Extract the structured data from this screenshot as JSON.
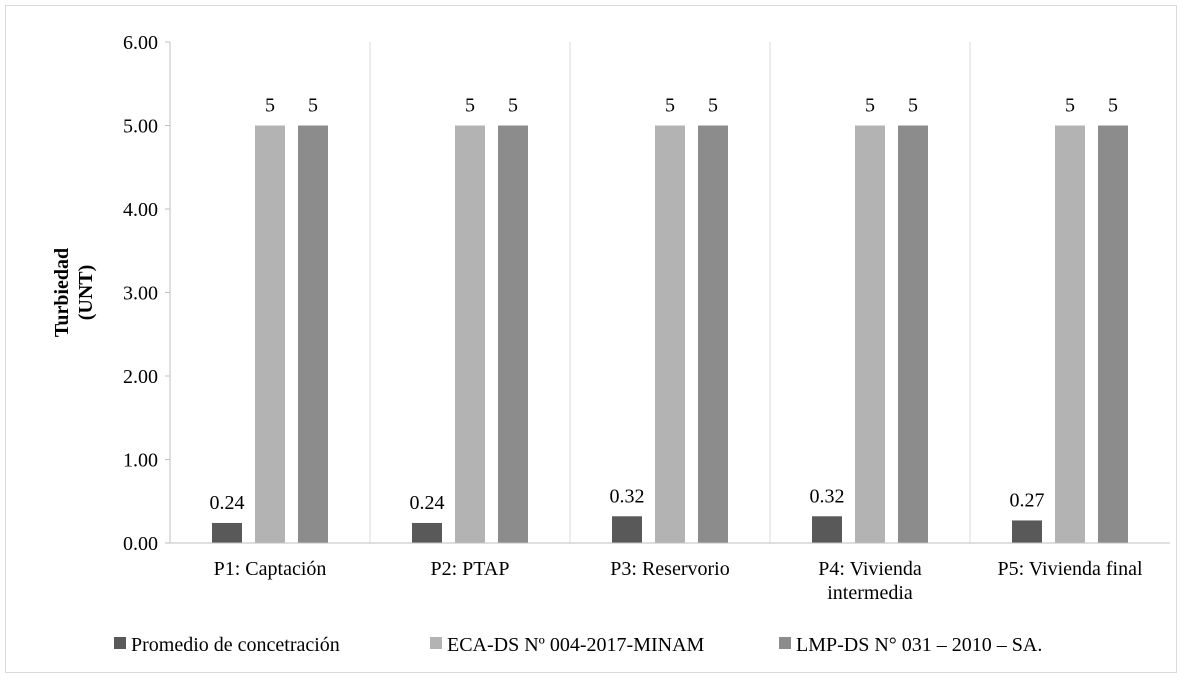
{
  "chart_data": {
    "type": "bar",
    "title": "",
    "xlabel": "",
    "ylabel_lines": [
      "Turbiedad",
      "(UNT)"
    ],
    "ylim": [
      0,
      6
    ],
    "yticks": [
      "0.00",
      "1.00",
      "2.00",
      "3.00",
      "4.00",
      "5.00",
      "6.00"
    ],
    "ytick_values": [
      0,
      1,
      2,
      3,
      4,
      5,
      6
    ],
    "categories": [
      [
        "P1: Captación"
      ],
      [
        "P2: PTAP"
      ],
      [
        "P3: Reservorio"
      ],
      [
        "P4: Vivienda",
        "intermedia"
      ],
      [
        "P5: Vivienda final"
      ]
    ],
    "series": [
      {
        "name": "Promedio de concetración",
        "color": "#595959",
        "values": [
          0.24,
          0.24,
          0.32,
          0.32,
          0.27
        ],
        "labels": [
          "0.24",
          "0.24",
          "0.32",
          "0.32",
          "0.27"
        ]
      },
      {
        "name": "ECA-DS Nº 004-2017-MINAM",
        "color": "#b3b3b3",
        "values": [
          5,
          5,
          5,
          5,
          5
        ],
        "labels": [
          "5",
          "5",
          "5",
          "5",
          "5"
        ]
      },
      {
        "name": "LMP-DS N° 031 – 2010 – SA.",
        "color": "#8c8c8c",
        "values": [
          5,
          5,
          5,
          5,
          5
        ],
        "labels": [
          "5",
          "5",
          "5",
          "5",
          "5"
        ]
      }
    ],
    "grid": "vertical category separators",
    "legend_position": "bottom"
  }
}
